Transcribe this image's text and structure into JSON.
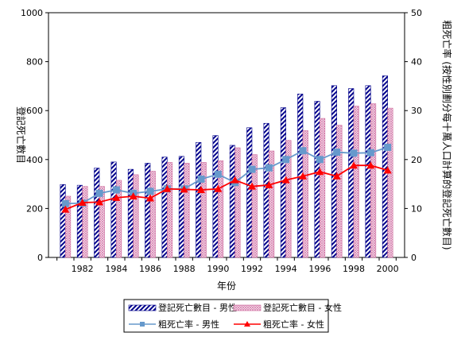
{
  "chart_data": {
    "type": "bar",
    "title": "",
    "xlabel": "年份",
    "ylabel": "登記死亡數目",
    "y2label": "粗死亡率 (按性別劃分每十萬人口計算的登記死亡數目)",
    "ylim": [
      0,
      1000
    ],
    "y2lim": [
      0,
      50
    ],
    "yticks": [
      "0",
      "200",
      "400",
      "600",
      "800",
      "1000"
    ],
    "y2ticks": [
      "0",
      "10",
      "20",
      "30",
      "40",
      "50"
    ],
    "xtick_labels": [
      "1982",
      "1984",
      "1986",
      "1988",
      "1990",
      "1992",
      "1994",
      "1996",
      "1998",
      "2000"
    ],
    "x": [
      1981,
      1982,
      1983,
      1984,
      1985,
      1986,
      1987,
      1988,
      1989,
      1990,
      1991,
      1992,
      1993,
      1994,
      1995,
      1996,
      1997,
      1998,
      1999,
      2000
    ],
    "series": [
      {
        "name": "登記死亡數目 - 男性",
        "kind": "bar",
        "axis": "left",
        "pattern": "diagonal-stripe",
        "color": "#00008b",
        "values": [
          298,
          295,
          365,
          390,
          360,
          385,
          410,
          413,
          470,
          498,
          458,
          530,
          548,
          612,
          668,
          638,
          702,
          690,
          702,
          742
        ]
      },
      {
        "name": "登記死亡數目 - 女性",
        "kind": "bar",
        "axis": "left",
        "pattern": "cross-hatch",
        "color": "#cc6699",
        "values": [
          250,
          290,
          290,
          315,
          338,
          352,
          388,
          385,
          388,
          395,
          448,
          420,
          435,
          478,
          518,
          568,
          540,
          618,
          628,
          610
        ]
      },
      {
        "name": "粗死亡率 - 男性",
        "kind": "line",
        "axis": "right",
        "marker": "square",
        "color": "#6699cc",
        "values": [
          11.0,
          11.1,
          13.1,
          13.8,
          13.1,
          13.5,
          14.0,
          14.0,
          16.0,
          17.0,
          15.3,
          18.0,
          18.3,
          20.0,
          21.8,
          20.0,
          21.5,
          21.3,
          21.4,
          22.5
        ]
      },
      {
        "name": "粗死亡率 - 女性",
        "kind": "line",
        "axis": "right",
        "marker": "triangle",
        "color": "#ff0000",
        "values": [
          9.8,
          11.2,
          11.3,
          12.2,
          12.5,
          12.1,
          14.0,
          13.9,
          13.8,
          14.0,
          15.8,
          14.5,
          14.8,
          15.8,
          16.6,
          17.5,
          16.6,
          18.8,
          18.8,
          17.8
        ]
      }
    ],
    "grid": false,
    "legend": "bottom"
  }
}
